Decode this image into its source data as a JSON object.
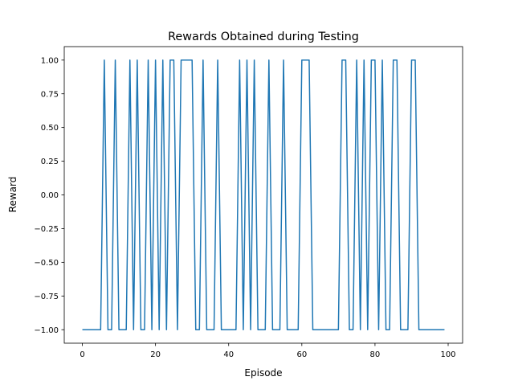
{
  "chart_data": {
    "type": "line",
    "title": "Rewards Obtained during Testing",
    "xlabel": "Episode",
    "ylabel": "Reward",
    "xlim": [
      -4.95,
      103.95
    ],
    "ylim": [
      -1.1,
      1.1
    ],
    "grid": false,
    "x_ticks": [
      0,
      20,
      40,
      60,
      80,
      100
    ],
    "x_tick_labels": [
      "0",
      "20",
      "40",
      "60",
      "80",
      "100"
    ],
    "y_ticks": [
      1.0,
      0.75,
      0.5,
      0.25,
      0.0,
      -0.25,
      -0.5,
      -0.75,
      -1.0
    ],
    "y_tick_labels": [
      "1.00",
      "0.75",
      "0.50",
      "0.25",
      "0.00",
      "−0.25",
      "−0.50",
      "−0.75",
      "−1.00"
    ],
    "line_color": "#1f77b4",
    "series": [
      {
        "x": [
          0,
          1,
          2,
          3,
          4,
          5,
          6,
          7,
          8,
          9,
          10,
          11,
          12,
          13,
          14,
          15,
          16,
          17,
          18,
          19,
          20,
          21,
          22,
          23,
          24,
          25,
          26,
          27,
          28,
          29,
          30,
          31,
          32,
          33,
          34,
          35,
          36,
          37,
          38,
          39,
          40,
          41,
          42,
          43,
          44,
          45,
          46,
          47,
          48,
          49,
          50,
          51,
          52,
          53,
          54,
          55,
          56,
          57,
          58,
          59,
          60,
          61,
          62,
          63,
          64,
          65,
          66,
          67,
          68,
          69,
          70,
          71,
          72,
          73,
          74,
          75,
          76,
          77,
          78,
          79,
          80,
          81,
          82,
          83,
          84,
          85,
          86,
          87,
          88,
          89,
          90,
          91,
          92,
          93,
          94,
          95,
          96,
          97,
          98,
          99
        ],
        "values": [
          -1,
          -1,
          -1,
          -1,
          -1,
          -1,
          1,
          -1,
          -1,
          1,
          -1,
          -1,
          -1,
          1,
          -1,
          1,
          -1,
          -1,
          1,
          -1,
          1,
          -1,
          1,
          -1,
          1,
          1,
          -1,
          1,
          1,
          1,
          1,
          -1,
          -1,
          1,
          -1,
          -1,
          -1,
          1,
          -1,
          -1,
          -1,
          -1,
          -1,
          1,
          -1,
          1,
          -1,
          1,
          -1,
          -1,
          -1,
          1,
          -1,
          -1,
          -1,
          1,
          -1,
          -1,
          -1,
          -1,
          1,
          1,
          1,
          -1,
          -1,
          -1,
          -1,
          -1,
          -1,
          -1,
          -1,
          1,
          1,
          -1,
          -1,
          1,
          -1,
          1,
          -1,
          1,
          1,
          -1,
          1,
          -1,
          -1,
          1,
          1,
          -1,
          -1,
          -1,
          1,
          1,
          -1,
          -1,
          -1,
          -1,
          -1,
          -1,
          -1,
          -1
        ]
      }
    ]
  }
}
